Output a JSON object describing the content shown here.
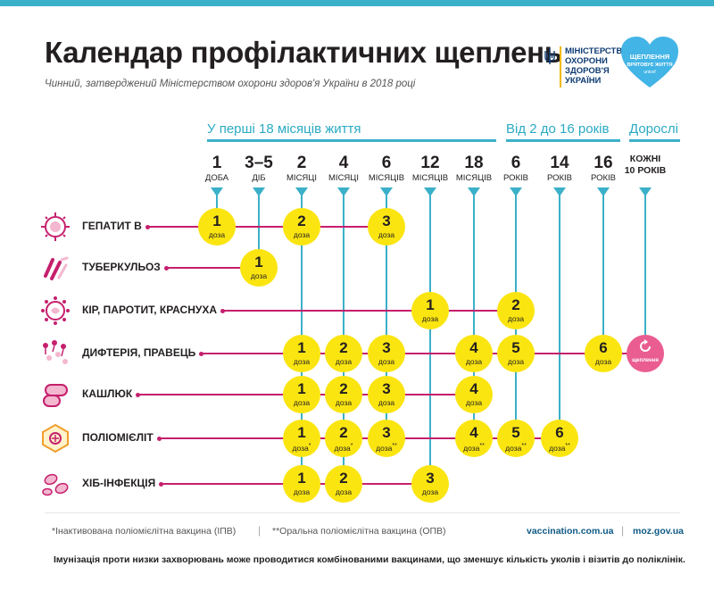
{
  "title": "Календар профілактичних щеплень",
  "subtitle": "Чинний, затверджений Міністерством охорони здоров'я України в 2018 році",
  "ministry_lines": [
    "МІНІСТЕРСТВО",
    "ОХОРОНИ",
    "ЗДОРОВ'Я",
    "УКРАЇНИ"
  ],
  "heart_badge": {
    "title_1": "ЩЕПЛЕННЯ",
    "title_2": "ВРЯТОВУЄ ЖИТТЯ",
    "sub": "unicef"
  },
  "groups": [
    {
      "label": "У перші 18 місяців життя"
    },
    {
      "label": "Від 2 до 16 років"
    },
    {
      "label": "Дорослі"
    }
  ],
  "columns": [
    {
      "num": "1",
      "unit": "ДОБА"
    },
    {
      "num": "3–5",
      "unit": "ДІБ"
    },
    {
      "num": "2",
      "unit": "МІСЯЦІ"
    },
    {
      "num": "4",
      "unit": "МІСЯЦІ"
    },
    {
      "num": "6",
      "unit": "МІСЯЦІВ"
    },
    {
      "num": "12",
      "unit": "МІСЯЦІВ"
    },
    {
      "num": "18",
      "unit": "МІСЯЦІВ"
    },
    {
      "num": "6",
      "unit": "РОКІВ"
    },
    {
      "num": "14",
      "unit": "РОКІВ"
    },
    {
      "num": "16",
      "unit": "РОКІВ"
    },
    {
      "num": "КОЖНІ",
      "unit": "10 РОКІВ"
    }
  ],
  "dose_label": "доза",
  "revaccination_label": "щеплення",
  "vaccines": [
    {
      "name": "ГЕПАТИТ В",
      "icon": "hepatitis-virus-icon",
      "doses": [
        {
          "col": 0,
          "n": "1"
        },
        {
          "col": 2,
          "n": "2"
        },
        {
          "col": 4,
          "n": "3"
        }
      ]
    },
    {
      "name": "ТУБЕРКУЛЬОЗ",
      "icon": "tuberculosis-bacteria-icon",
      "doses": [
        {
          "col": 1,
          "n": "1"
        }
      ]
    },
    {
      "name": "КІР, ПАРОТИТ, КРАСНУХА",
      "icon": "measles-virus-icon",
      "doses": [
        {
          "col": 5,
          "n": "1"
        },
        {
          "col": 7,
          "n": "2"
        }
      ]
    },
    {
      "name": "ДИФТЕРІЯ, ПРАВЕЦЬ",
      "icon": "diphtheria-bacteria-icon",
      "doses": [
        {
          "col": 2,
          "n": "1"
        },
        {
          "col": 3,
          "n": "2"
        },
        {
          "col": 4,
          "n": "3"
        },
        {
          "col": 6,
          "n": "4"
        },
        {
          "col": 7,
          "n": "5"
        },
        {
          "col": 9,
          "n": "6"
        }
      ],
      "revaccination_col": 10
    },
    {
      "name": "КАШЛЮК",
      "icon": "pertussis-bacteria-icon",
      "doses": [
        {
          "col": 2,
          "n": "1"
        },
        {
          "col": 3,
          "n": "2"
        },
        {
          "col": 4,
          "n": "3"
        },
        {
          "col": 6,
          "n": "4"
        }
      ]
    },
    {
      "name": "ПОЛІОМІЄЛІТ",
      "icon": "polio-virus-icon",
      "doses": [
        {
          "col": 2,
          "n": "1",
          "mark": "*"
        },
        {
          "col": 3,
          "n": "2",
          "mark": "*"
        },
        {
          "col": 4,
          "n": "3",
          "mark": "**"
        },
        {
          "col": 6,
          "n": "4",
          "mark": "**"
        },
        {
          "col": 7,
          "n": "5",
          "mark": "**"
        },
        {
          "col": 8,
          "n": "6",
          "mark": "**"
        }
      ]
    },
    {
      "name": "ХІБ-ІНФЕКЦІЯ",
      "icon": "hib-bacteria-icon",
      "doses": [
        {
          "col": 2,
          "n": "1"
        },
        {
          "col": 3,
          "n": "2"
        },
        {
          "col": 5,
          "n": "3"
        }
      ]
    }
  ],
  "footnotes": {
    "ipv": "*Інактивована поліомієлітна вакцина (ІПВ)",
    "separator": "|",
    "opv": "**Оральна поліомієлітна вакцина (ОПВ)",
    "link_1": "vaccination.com.ua",
    "link_2": "moz.gov.ua"
  },
  "bottom_note": "Імунізація проти низки захворювань може проводитися комбінованими вакцинами, що зменшує кількість уколів і візитів до поліклінік.",
  "colors": {
    "accent_blue": "#3bb0c9",
    "dose_yellow": "#fae511",
    "line_magenta": "#c51f6d",
    "revac_pink": "#ea5d90",
    "ministry_navy": "#0f3c73"
  }
}
